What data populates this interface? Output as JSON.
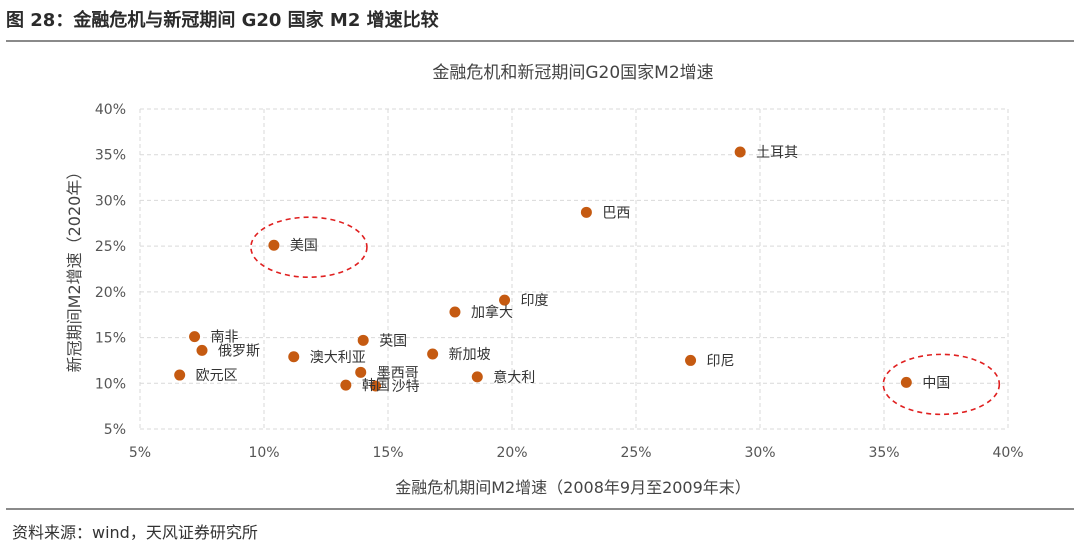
{
  "figure": {
    "title": "图 28：金融危机与新冠期间 G20 国家 M2 增速比较",
    "source": "资料来源：wind，天风证券研究所"
  },
  "chart_data": {
    "type": "scatter",
    "title": "金融危机和新冠期间G20国家M2增速",
    "xlabel": "金融危机期间M2增速（2008年9月至2009年末）",
    "ylabel": "新冠期间M2增速（2020年）",
    "xlim": [
      0.05,
      0.4
    ],
    "ylim": [
      0.05,
      0.4
    ],
    "xticks": [
      0.05,
      0.1,
      0.15,
      0.2,
      0.25,
      0.3,
      0.35,
      0.4
    ],
    "yticks": [
      0.05,
      0.1,
      0.15,
      0.2,
      0.25,
      0.3,
      0.35,
      0.4
    ],
    "xtick_labels": [
      "5%",
      "10%",
      "15%",
      "20%",
      "25%",
      "30%",
      "35%",
      "40%"
    ],
    "ytick_labels": [
      "5%",
      "10%",
      "15%",
      "20%",
      "25%",
      "30%",
      "35%",
      "40%"
    ],
    "grid": true,
    "marker_color": "#c55a11",
    "highlight_color": "#e02020",
    "points": [
      {
        "label": "土耳其",
        "x": 0.292,
        "y": 0.353
      },
      {
        "label": "巴西",
        "x": 0.23,
        "y": 0.287
      },
      {
        "label": "美国",
        "x": 0.104,
        "y": 0.251,
        "highlight": true
      },
      {
        "label": "印度",
        "x": 0.197,
        "y": 0.191
      },
      {
        "label": "加拿大",
        "x": 0.177,
        "y": 0.178
      },
      {
        "label": "南非",
        "x": 0.072,
        "y": 0.151
      },
      {
        "label": "英国",
        "x": 0.14,
        "y": 0.147
      },
      {
        "label": "俄罗斯",
        "x": 0.075,
        "y": 0.136
      },
      {
        "label": "新加坡",
        "x": 0.168,
        "y": 0.132
      },
      {
        "label": "澳大利亚",
        "x": 0.112,
        "y": 0.129
      },
      {
        "label": "印尼",
        "x": 0.272,
        "y": 0.125
      },
      {
        "label": "墨西哥",
        "x": 0.139,
        "y": 0.112
      },
      {
        "label": "欧元区",
        "x": 0.066,
        "y": 0.109
      },
      {
        "label": "意大利",
        "x": 0.186,
        "y": 0.107
      },
      {
        "label": "中国",
        "x": 0.359,
        "y": 0.101,
        "highlight": true
      },
      {
        "label": "韩国",
        "x": 0.133,
        "y": 0.098
      },
      {
        "label": "沙特",
        "x": 0.145,
        "y": 0.097
      }
    ]
  }
}
